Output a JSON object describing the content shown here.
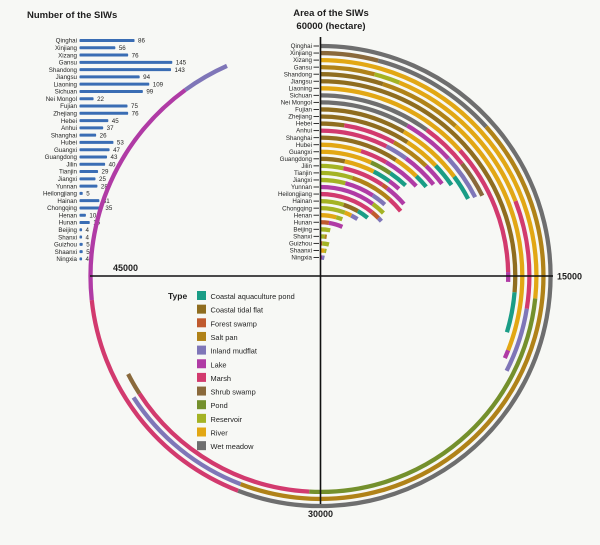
{
  "styles": {
    "background": "#f7f8f5",
    "bar_color": "#3A6DB4",
    "axis_color": "#111111",
    "text_color": "#1f1f1f"
  },
  "chart_data": [
    {
      "type": "bar",
      "orientation": "horizontal",
      "title": "Number of the SIWs",
      "xlim": [
        0,
        145
      ],
      "grid": false,
      "categories": [
        "Qinghai",
        "Xinjiang",
        "Xizang",
        "Gansu",
        "Shandong",
        "Jiangsu",
        "Liaoning",
        "Sichuan",
        "Nei Mongol",
        "Fujian",
        "Zhejiang",
        "Hebei",
        "Anhui",
        "Shanghai",
        "Hubei",
        "Guangxi",
        "Guangdong",
        "Jilin",
        "Tianjin",
        "Jiangxi",
        "Yunnan",
        "Heilongjiang",
        "Hainan",
        "Chongqing",
        "Henan",
        "Hunan",
        "Beijing",
        "Shanxi",
        "Guizhou",
        "Shaanxi",
        "Ningxia"
      ],
      "values": [
        86,
        56,
        76,
        145,
        143,
        94,
        109,
        99,
        22,
        75,
        76,
        45,
        37,
        26,
        53,
        47,
        43,
        40,
        29,
        25,
        28,
        5,
        31,
        35,
        10,
        16,
        4,
        4,
        5,
        5,
        4
      ]
    },
    {
      "type": "radial-stacked-bar",
      "title": "Area of the SIWs",
      "unit": "hectare",
      "full_circle_value": 60000,
      "start_angle_deg": 0,
      "direction": "clockwise",
      "tick_labels": {
        "top": "60000 (hectare)",
        "right": "15000",
        "bottom": "30000",
        "left": "45000"
      },
      "ticks": [
        15000,
        30000,
        45000,
        60000
      ],
      "legend_title": "Type",
      "legend_position": "inside-lower-left",
      "wetland_types": [
        {
          "key": "coastal_aquaculture_pond",
          "label": "Coastal aquaculture pond",
          "color": "#1A9D86"
        },
        {
          "key": "coastal_tidal_flat",
          "label": "Coastal tidal flat",
          "color": "#8F6D1F"
        },
        {
          "key": "forest_swamp",
          "label": "Forest swamp",
          "color": "#C05A2E"
        },
        {
          "key": "salt_pan",
          "label": "Salt pan",
          "color": "#B08218"
        },
        {
          "key": "inland_mudflat",
          "label": "Inland mudflat",
          "color": "#7F76B8"
        },
        {
          "key": "lake",
          "label": "Lake",
          "color": "#B03BA5"
        },
        {
          "key": "marsh",
          "label": "Marsh",
          "color": "#D23A6E"
        },
        {
          "key": "shrub_swamp",
          "label": "Shrub swamp",
          "color": "#8A693B"
        },
        {
          "key": "pond",
          "label": "Pond",
          "color": "#74902C"
        },
        {
          "key": "reservoir",
          "label": "Reservoir",
          "color": "#A4B324"
        },
        {
          "key": "river",
          "label": "River",
          "color": "#E2A714"
        },
        {
          "key": "wet_meadow",
          "label": "Wet meadow",
          "color": "#6E6E6E"
        }
      ],
      "series": [
        {
          "name": "Qinghai",
          "total": 56000,
          "segments": [
            [
              "wet_meadow",
              33500
            ],
            [
              "marsh",
              10500
            ],
            [
              "lake",
              10000
            ],
            [
              "inland_mudflat",
              2000
            ]
          ]
        },
        {
          "name": "Xinjiang",
          "total": 39500,
          "segments": [
            [
              "shrub_swamp",
              2500
            ],
            [
              "wet_meadow",
              5500
            ],
            [
              "salt_pan",
              25500
            ],
            [
              "inland_mudflat",
              6000
            ]
          ]
        },
        {
          "name": "Xizang",
          "total": 40500,
          "segments": [
            [
              "river",
              16000
            ],
            [
              "pond",
              14500
            ],
            [
              "marsh",
              9000
            ],
            [
              "shrub_swamp",
              1000
            ]
          ]
        },
        {
          "name": "Gansu",
          "total": 19500,
          "segments": [
            [
              "salt_pan",
              2500
            ],
            [
              "reservoir",
              1200
            ],
            [
              "river",
              7800
            ],
            [
              "marsh",
              5000
            ],
            [
              "inland_mudflat",
              3000
            ]
          ]
        },
        {
          "name": "Shandong",
          "total": 19000,
          "segments": [
            [
              "coastal_tidal_flat",
              3000
            ],
            [
              "salt_pan",
              4000
            ],
            [
              "river",
              11600
            ],
            [
              "lake",
              400
            ]
          ]
        },
        {
          "name": "Jiangsu",
          "total": 17800,
          "segments": [
            [
              "coastal_tidal_flat",
              15800
            ],
            [
              "coastal_aquaculture_pond",
              2000
            ]
          ]
        },
        {
          "name": "Liaoning",
          "total": 15300,
          "segments": [
            [
              "river",
              8000
            ],
            [
              "marsh",
              6800
            ],
            [
              "lake",
              500
            ]
          ]
        },
        {
          "name": "Sichuan",
          "total": 10600,
          "segments": [
            [
              "wet_meadow",
              6000
            ],
            [
              "marsh",
              2600
            ],
            [
              "shrub_swamp",
              2000
            ]
          ]
        },
        {
          "name": "Nei Mongol",
          "total": 10500,
          "segments": [
            [
              "wet_meadow",
              5000
            ],
            [
              "lake",
              2900
            ],
            [
              "inland_mudflat",
              2600
            ]
          ]
        },
        {
          "name": "Fujian",
          "total": 10400,
          "segments": [
            [
              "coastal_tidal_flat",
              5000
            ],
            [
              "river",
              3900
            ],
            [
              "coastal_aquaculture_pond",
              1500
            ]
          ]
        },
        {
          "name": "Zhejiang",
          "total": 9200,
          "segments": [
            [
              "coastal_tidal_flat",
              5500
            ],
            [
              "river",
              2200
            ],
            [
              "coastal_aquaculture_pond",
              1500
            ]
          ]
        },
        {
          "name": "Hebei",
          "total": 8800,
          "segments": [
            [
              "coastal_tidal_flat",
              1500
            ],
            [
              "marsh",
              3300
            ],
            [
              "salt_pan",
              2500
            ],
            [
              "lake",
              1500
            ]
          ]
        },
        {
          "name": "Anhui",
          "total": 8500,
          "segments": [
            [
              "marsh",
              4500
            ],
            [
              "inland_mudflat",
              1500
            ],
            [
              "lake",
              2500
            ]
          ]
        },
        {
          "name": "Shanghai",
          "total": 8300,
          "segments": [
            [
              "coastal_tidal_flat",
              5500
            ],
            [
              "river",
              1800
            ],
            [
              "coastal_aquaculture_pond",
              1000
            ]
          ]
        },
        {
          "name": "Hubei",
          "total": 7800,
          "segments": [
            [
              "river",
              3000
            ],
            [
              "marsh",
              2000
            ],
            [
              "lake",
              2800
            ]
          ]
        },
        {
          "name": "Guangxi",
          "total": 7200,
          "segments": [
            [
              "river",
              4000
            ],
            [
              "pond",
              1700
            ],
            [
              "coastal_aquaculture_pond",
              1500
            ]
          ]
        },
        {
          "name": "Guangdong",
          "total": 7000,
          "segments": [
            [
              "coastal_tidal_flat",
              2000
            ],
            [
              "river",
              2500
            ],
            [
              "coastal_aquaculture_pond",
              1500
            ],
            [
              "lake",
              1000
            ]
          ]
        },
        {
          "name": "Jilin",
          "total": 8200,
          "segments": [
            [
              "reservoir",
              2000
            ],
            [
              "marsh",
              3700
            ],
            [
              "forest_swamp",
              500
            ],
            [
              "lake",
              2000
            ]
          ]
        },
        {
          "name": "Tianjin",
          "total": 8500,
          "segments": [
            [
              "reservoir",
              3000
            ],
            [
              "salt_pan",
              4000
            ],
            [
              "marsh",
              1500
            ]
          ]
        },
        {
          "name": "Jiangxi",
          "total": 7000,
          "segments": [
            [
              "reservoir",
              2500
            ],
            [
              "lake",
              3000
            ],
            [
              "inland_mudflat",
              1500
            ]
          ]
        },
        {
          "name": "Yunnan",
          "total": 7500,
          "segments": [
            [
              "lake",
              6000
            ],
            [
              "reservoir",
              1500
            ]
          ]
        },
        {
          "name": "Heilongjiang",
          "total": 8000,
          "segments": [
            [
              "marsh",
              6500
            ],
            [
              "forest_swamp",
              1000
            ],
            [
              "inland_mudflat",
              500
            ]
          ]
        },
        {
          "name": "Hainan",
          "total": 6500,
          "segments": [
            [
              "reservoir",
              3000
            ],
            [
              "coastal_tidal_flat",
              2000
            ],
            [
              "coastal_aquaculture_pond",
              1500
            ]
          ]
        },
        {
          "name": "Chongqing",
          "total": 5500,
          "segments": [
            [
              "reservoir",
              3500
            ],
            [
              "river",
              1000
            ],
            [
              "inland_mudflat",
              1000
            ]
          ]
        },
        {
          "name": "Henan",
          "total": 3500,
          "segments": [
            [
              "river",
              2500
            ],
            [
              "reservoir",
              1000
            ]
          ]
        },
        {
          "name": "Hunan",
          "total": 4000,
          "segments": [
            [
              "forest_swamp",
              1500
            ],
            [
              "lake",
              2500
            ]
          ]
        },
        {
          "name": "Beijing",
          "total": 2000,
          "segments": [
            [
              "reservoir",
              2000
            ]
          ]
        },
        {
          "name": "Shanxi",
          "total": 1500,
          "segments": [
            [
              "reservoir",
              1000
            ],
            [
              "salt_pan",
              500
            ]
          ]
        },
        {
          "name": "Guizhou",
          "total": 2500,
          "segments": [
            [
              "forest_swamp",
              500
            ],
            [
              "reservoir",
              2000
            ]
          ]
        },
        {
          "name": "Shaanxi",
          "total": 2200,
          "segments": [
            [
              "river",
              1500
            ],
            [
              "reservoir",
              700
            ]
          ]
        },
        {
          "name": "Ningxia",
          "total": 2000,
          "segments": [
            [
              "lake",
              800
            ],
            [
              "inland_mudflat",
              1200
            ]
          ]
        }
      ]
    }
  ]
}
